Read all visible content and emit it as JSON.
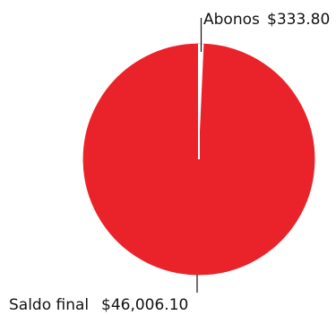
{
  "chart_data": {
    "type": "pie",
    "slices": [
      {
        "label": "Abonos",
        "value": 333.8,
        "value_text": "$333.80",
        "color": "#ffffff",
        "stroke": "#dddddd"
      },
      {
        "label": "Saldo final",
        "value": 46006.1,
        "value_text": "$46,006.10",
        "color": "#ea232a",
        "stroke": "#ea232a"
      }
    ],
    "start_angle_deg": 0,
    "direction": "clockwise",
    "separator_color": "#ffffff"
  }
}
